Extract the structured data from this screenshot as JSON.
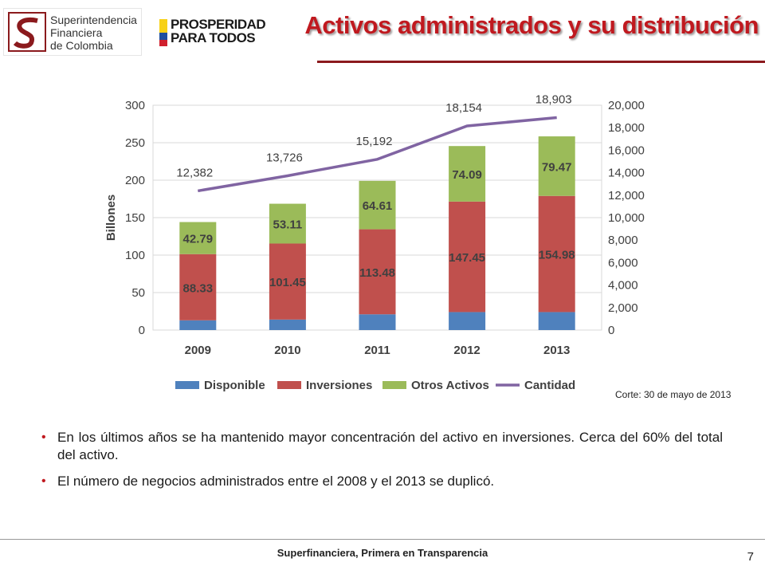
{
  "header": {
    "logo_text": "Superintendencia\nFinanciera\nde Colombia",
    "logo2_text": "PROSPERIDAD\nPARA TODOS",
    "title": "Activos administrados y su distribución"
  },
  "note": "Corte: 30 de mayo de 2013",
  "bullets": [
    "En los últimos años se ha mantenido mayor concentración del activo en inversiones. Cerca del 60% del total del activo.",
    "El número de negocios administrados entre el 2008 y el 2013 se duplicó."
  ],
  "footer": {
    "text": "Superfinanciera, Primera en Transparencia",
    "page": "7"
  },
  "colors": {
    "disponible": "#4f81bd",
    "inversiones": "#c0504d",
    "otros": "#9bbb59",
    "cantidad": "#8064a2",
    "title": "#c0191f"
  },
  "chart_data": {
    "type": "bar",
    "stacked": true,
    "categories": [
      "2009",
      "2010",
      "2011",
      "2012",
      "2013"
    ],
    "ylabel": "Billones",
    "ylim": [
      0,
      300
    ],
    "y_ticks": [
      0,
      50,
      100,
      150,
      200,
      250,
      300
    ],
    "y2lim": [
      0,
      20000
    ],
    "y2_ticks": [
      "0",
      "2,000",
      "4,000",
      "6,000",
      "8,000",
      "10,000",
      "12,000",
      "14,000",
      "16,000",
      "18,000",
      "20,000"
    ],
    "grid": true,
    "legend_position": "bottom",
    "series": [
      {
        "name": "Disponible",
        "values": [
          13,
          14,
          21,
          24,
          24
        ],
        "labels": [
          "",
          "",
          "",
          "",
          ""
        ]
      },
      {
        "name": "Inversiones",
        "values": [
          88.33,
          101.45,
          113.48,
          147.45,
          154.98
        ],
        "labels": [
          "88.33",
          "101.45",
          "113.48",
          "147.45",
          "154.98"
        ]
      },
      {
        "name": "Otros Activos",
        "values": [
          42.79,
          53.11,
          64.61,
          74.09,
          79.47
        ],
        "labels": [
          "42.79",
          "53.11",
          "64.61",
          "74.09",
          "79.47"
        ]
      },
      {
        "name": "Cantidad",
        "type": "line",
        "axis": "right",
        "values": [
          12382,
          13726,
          15192,
          18154,
          18903
        ],
        "labels": [
          "12,382",
          "13,726",
          "15,192",
          "18,154",
          "18,903"
        ]
      }
    ]
  }
}
